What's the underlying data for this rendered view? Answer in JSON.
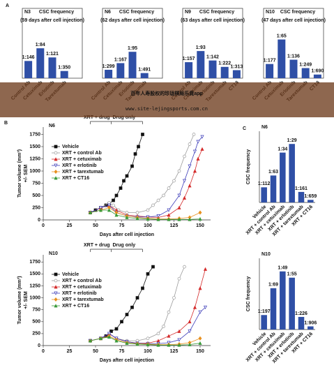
{
  "chart_data": [
    {
      "type": "bar",
      "panel": "A",
      "label": "N3",
      "title": "CSC frequency",
      "subtitle": "(59 days after cell injection)",
      "categories": [
        "Control Ab",
        "Cetuximab",
        "Erlotinib",
        "Tarextumab"
      ],
      "values": [
        0.00685,
        0.0119,
        0.00826,
        0.00286
      ],
      "value_labels": [
        "1:146",
        "1:84",
        "1:121",
        "1:350"
      ],
      "color": "#2f4fa6",
      "ylim": [
        0,
        0.02
      ]
    },
    {
      "type": "bar",
      "label": "N6",
      "title": "CSC frequency",
      "subtitle": "(62 days after cell injection)",
      "categories": [
        "Control Ab",
        "Cetuximab",
        "Erlotinib",
        "Tarextumab"
      ],
      "values": [
        0.00334,
        0.00599,
        0.0105,
        0.00204
      ],
      "value_labels": [
        "1:299",
        "1:167",
        "1:95",
        "1:491"
      ],
      "color": "#2f4fa6",
      "ylim": [
        0,
        0.02
      ]
    },
    {
      "type": "bar",
      "label": "N9",
      "title": "CSC frequency",
      "subtitle": "(63 days after cell injection)",
      "categories": [
        "Control Ab",
        "Cetuximab",
        "Erlotinib",
        "Tarextumab",
        "CT16"
      ],
      "values": [
        0.00637,
        0.0108,
        0.00704,
        0.0045,
        0.00319
      ],
      "value_labels": [
        "1:157",
        "1:93",
        "1:142",
        "1:222",
        "1:313"
      ],
      "color": "#2f4fa6",
      "ylim": [
        0,
        0.02
      ]
    },
    {
      "type": "bar",
      "label": "N10",
      "title": "CSC frequency",
      "subtitle": "(47 days after cell injection)",
      "categories": [
        "Control Ab",
        "Cetuximab",
        "Erlotinib",
        "Tarextumab",
        "CT16"
      ],
      "values": [
        0.00565,
        0.0154,
        0.00735,
        0.00402,
        0.00145
      ],
      "value_labels": [
        "1:177",
        "1:65",
        "1:136",
        "1:249",
        "1:690"
      ],
      "color": "#2f4fa6",
      "ylim": [
        0,
        0.02
      ]
    },
    {
      "type": "line",
      "panel": "B",
      "label": "N6",
      "xlabel": "Days after cell injection",
      "ylabel": [
        "Tumor volume (mm³)",
        "+/- SEM"
      ],
      "annotations": [
        "XRT + drug",
        "Drug only"
      ],
      "legend": "left",
      "xlim": [
        0,
        160
      ],
      "xticks": [
        0,
        25,
        50,
        75,
        100,
        125,
        150
      ],
      "ylim": [
        0,
        1900
      ],
      "yticks": [
        0,
        250,
        500,
        750,
        1000,
        1250,
        1500,
        1750
      ],
      "series": [
        {
          "name": "Vehicle",
          "color": "#111111",
          "marker": "square",
          "x": [
            45,
            50,
            55,
            60,
            63,
            67,
            70,
            74,
            77,
            80,
            85,
            88,
            91,
            95
          ],
          "values": [
            150,
            200,
            250,
            300,
            330,
            400,
            500,
            650,
            800,
            900,
            1100,
            1350,
            1500,
            1750
          ]
        },
        {
          "name": "XRT + control Ab",
          "color": "#9a9a9a",
          "marker": "circle",
          "x": [
            45,
            55,
            63,
            67,
            72,
            80,
            90,
            100,
            105,
            110,
            115,
            120,
            125,
            130,
            135,
            140,
            144
          ],
          "values": [
            150,
            250,
            350,
            300,
            200,
            150,
            150,
            200,
            300,
            400,
            500,
            650,
            800,
            1000,
            1300,
            1550,
            1750
          ]
        },
        {
          "name": "XRT + cetuximab",
          "color": "#d42a2a",
          "marker": "triangle",
          "x": [
            45,
            55,
            63,
            70,
            80,
            90,
            100,
            110,
            120,
            130,
            135,
            140,
            145,
            148,
            152
          ],
          "values": [
            150,
            250,
            300,
            200,
            100,
            80,
            60,
            50,
            100,
            250,
            450,
            700,
            1000,
            1250,
            1450
          ]
        },
        {
          "name": "XRT + erlotinib",
          "color": "#3b3bb8",
          "marker": "tridown",
          "x": [
            45,
            55,
            63,
            70,
            80,
            90,
            100,
            110,
            120,
            130,
            135,
            140,
            145,
            148,
            152
          ],
          "values": [
            150,
            250,
            300,
            150,
            80,
            60,
            60,
            80,
            200,
            500,
            800,
            1100,
            1400,
            1600,
            1700
          ]
        },
        {
          "name": "XRT + tarextumab",
          "color": "#e8901e",
          "marker": "diamond",
          "x": [
            45,
            55,
            63,
            70,
            80,
            90,
            100,
            110,
            120,
            130,
            140,
            150
          ],
          "values": [
            150,
            200,
            250,
            150,
            80,
            50,
            30,
            20,
            20,
            30,
            50,
            150
          ]
        },
        {
          "name": "XRT + CT16",
          "color": "#3a9a3a",
          "marker": "triangle",
          "x": [
            45,
            55,
            63,
            70,
            80,
            90,
            100,
            110,
            120,
            130,
            140,
            150
          ],
          "values": [
            150,
            200,
            200,
            100,
            50,
            30,
            20,
            10,
            10,
            10,
            10,
            20
          ]
        }
      ]
    },
    {
      "type": "line",
      "label": "N10",
      "xlabel": "Days after cell injection",
      "ylabel": [
        "Tumor volume (mm³)",
        "+/- SEM"
      ],
      "annotations": [
        "XRT + drug",
        "Drug only"
      ],
      "legend": "left",
      "xlim": [
        0,
        160
      ],
      "xticks": [
        0,
        25,
        50,
        75,
        100,
        125,
        150
      ],
      "ylim": [
        0,
        1900
      ],
      "yticks": [
        0,
        250,
        500,
        750,
        1000,
        1250,
        1500,
        1750
      ],
      "series": [
        {
          "name": "Vehicle",
          "color": "#111111",
          "marker": "square",
          "x": [
            45,
            55,
            60,
            65,
            70,
            75,
            80,
            85,
            90,
            95,
            100,
            105
          ],
          "values": [
            100,
            150,
            200,
            300,
            350,
            500,
            650,
            800,
            1000,
            1200,
            1500,
            1650
          ]
        },
        {
          "name": "XRT + control Ab",
          "color": "#9a9a9a",
          "marker": "circle",
          "x": [
            45,
            55,
            63,
            70,
            80,
            90,
            100,
            110,
            115,
            120,
            125,
            130,
            135
          ],
          "values": [
            100,
            150,
            250,
            150,
            100,
            100,
            150,
            250,
            400,
            700,
            1000,
            1400,
            1650
          ]
        },
        {
          "name": "XRT + cetuximab",
          "color": "#d42a2a",
          "marker": "triangle",
          "x": [
            45,
            55,
            63,
            70,
            80,
            90,
            100,
            110,
            120,
            130,
            140,
            145,
            150,
            155
          ],
          "values": [
            100,
            150,
            250,
            150,
            80,
            50,
            50,
            100,
            200,
            300,
            500,
            800,
            1200,
            1600
          ]
        },
        {
          "name": "XRT + erlotinib",
          "color": "#3b3bb8",
          "marker": "tridown",
          "x": [
            45,
            55,
            63,
            70,
            80,
            90,
            100,
            110,
            120,
            130,
            140,
            150,
            155
          ],
          "values": [
            100,
            150,
            250,
            150,
            80,
            50,
            40,
            40,
            60,
            120,
            300,
            700,
            800
          ]
        },
        {
          "name": "XRT + tarextumab",
          "color": "#e8901e",
          "marker": "diamond",
          "x": [
            45,
            55,
            63,
            70,
            80,
            90,
            100,
            110,
            120,
            130,
            140,
            150
          ],
          "values": [
            100,
            150,
            200,
            120,
            60,
            40,
            30,
            20,
            20,
            30,
            60,
            150
          ]
        },
        {
          "name": "XRT + CT16",
          "color": "#3a9a3a",
          "marker": "triangle",
          "x": [
            45,
            55,
            63,
            70,
            80,
            90,
            100,
            110,
            120,
            130,
            140,
            150
          ],
          "values": [
            100,
            150,
            180,
            100,
            50,
            30,
            20,
            10,
            10,
            10,
            20,
            50
          ]
        }
      ]
    },
    {
      "type": "bar",
      "panel": "C",
      "label": "N6",
      "ylabel": "CSC frequency",
      "categories": [
        "Vehicle",
        "XRT + control Ab",
        "XRT + cetuximab",
        "XRT + erlotinib",
        "XRT + tarextumab",
        "XRT + CT16"
      ],
      "values": [
        0.00893,
        0.0159,
        0.0294,
        0.0345,
        0.00621,
        0.00152
      ],
      "value_labels": [
        "1:112",
        "1:63",
        "1:34",
        "1:29",
        "1:161",
        "1:659"
      ],
      "color": "#2f4fa6",
      "ylim": [
        0,
        0.042
      ]
    },
    {
      "type": "bar",
      "label": "N10",
      "ylabel": "CSC frequency",
      "categories": [
        "Vehicle",
        "XRT + control Ab",
        "XRT + cetuximab",
        "XRT + erlotinib",
        "XRT + tarextumab",
        "XRT + CT16"
      ],
      "values": [
        0.00508,
        0.0145,
        0.0204,
        0.0182,
        0.00442,
        0.0011
      ],
      "value_labels": [
        "1:197",
        "1:69",
        "1:49",
        "1:55",
        "1:226",
        "1:906"
      ],
      "color": "#2f4fa6",
      "ylim": [
        0,
        0.025
      ]
    }
  ],
  "banner": {
    "title": "百年人寿股权的珍珑棋局乐竟app",
    "url": "www.site-lejingsports.com.cn"
  }
}
